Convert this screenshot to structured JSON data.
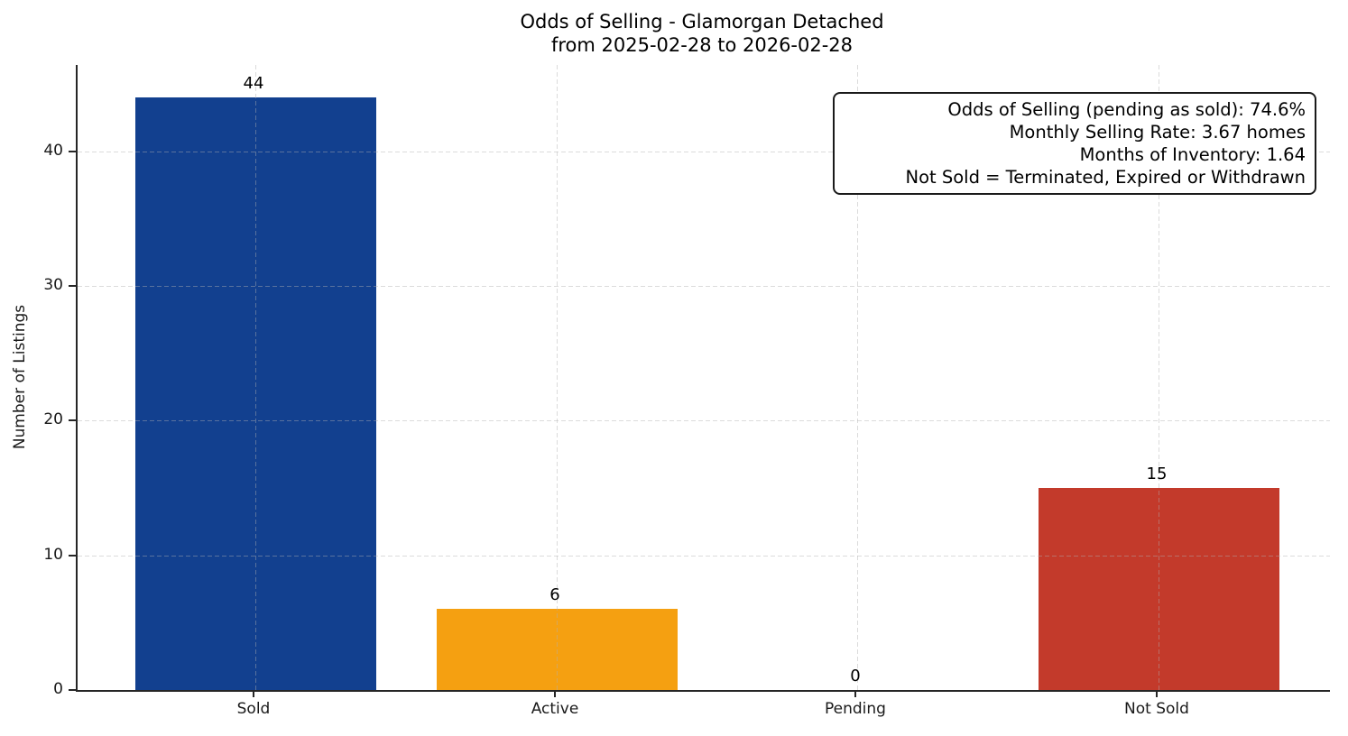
{
  "chart_data": {
    "type": "bar",
    "title": "Odds of Selling - Glamorgan Detached",
    "subtitle": "from 2025-02-28 to 2026-02-28",
    "categories": [
      "Sold",
      "Active",
      "Pending",
      "Not Sold"
    ],
    "values": [
      44,
      6,
      0,
      15
    ],
    "value_labels": [
      "44",
      "6",
      "0",
      "15"
    ],
    "bar_colors": [
      "#12408F",
      "#F5A011",
      null,
      "#C33A2B"
    ],
    "xlabel": "",
    "ylabel": "Number of Listings",
    "yticks": [
      0,
      10,
      20,
      30,
      40
    ],
    "ylim": [
      0,
      46.4
    ],
    "grid": {
      "style": "dashed",
      "color": "#B0B0B0",
      "alpha": 0.4,
      "horizontal": true,
      "vertical": true
    },
    "legend": "none",
    "annotation": {
      "position": "top-right",
      "align": "right",
      "lines": [
        "Odds of Selling (pending as sold): 74.6%",
        "Monthly Selling Rate: 3.67 homes",
        "Months of Inventory: 1.64",
        "Not Sold = Terminated, Expired or Withdrawn"
      ]
    },
    "colors": {
      "axis": "#262626",
      "text": "#1A1A1A",
      "background": "#FFFFFF"
    }
  }
}
